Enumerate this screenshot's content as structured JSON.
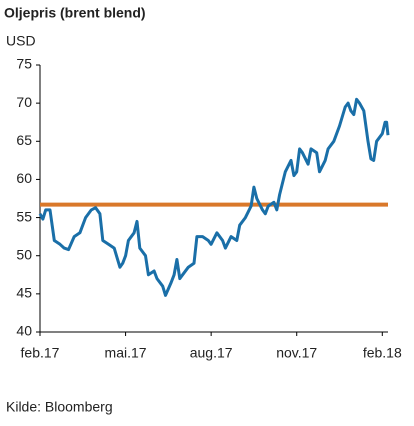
{
  "chart_data": {
    "type": "line",
    "title": "Oljepris (brent blend)",
    "y_label": "USD",
    "source": "Kilde: Bloomberg",
    "x": [
      0,
      0.1,
      0.2,
      0.35,
      0.5,
      0.7,
      0.85,
      1.0,
      1.2,
      1.4,
      1.6,
      1.8,
      1.95,
      2.1,
      2.2,
      2.4,
      2.6,
      2.8,
      2.9,
      3.0,
      3.1,
      3.3,
      3.4,
      3.5,
      3.7,
      3.8,
      4.0,
      4.1,
      4.3,
      4.4,
      4.6,
      4.7,
      4.8,
      4.9,
      5.0,
      5.2,
      5.4,
      5.5,
      5.7,
      5.9,
      6.0,
      6.2,
      6.4,
      6.5,
      6.7,
      6.9,
      7.0,
      7.2,
      7.4,
      7.5,
      7.6,
      7.8,
      7.9,
      8.0,
      8.2,
      8.3,
      8.4,
      8.6,
      8.8,
      8.9,
      9.0,
      9.1,
      9.2,
      9.4,
      9.5,
      9.7,
      9.8,
      10.0,
      10.1,
      10.3,
      10.5,
      10.7,
      10.8,
      10.9,
      11.0,
      11.1,
      11.2,
      11.35,
      11.5,
      11.6,
      11.7,
      11.8,
      12.0,
      12.1,
      12.15,
      12.2
    ],
    "series": [
      {
        "name": "Brent",
        "color": "#1a6fa8",
        "values": [
          55.5,
          54.8,
          56,
          56,
          52,
          51.5,
          51,
          50.8,
          52.5,
          53,
          55,
          56,
          56.3,
          55.5,
          52,
          51.5,
          51,
          48.5,
          49,
          50,
          52,
          53,
          54.5,
          51,
          50,
          47.5,
          48,
          47,
          46,
          44.8,
          46.5,
          47.5,
          49.5,
          47,
          47.5,
          48.5,
          49,
          52.5,
          52.5,
          52,
          51.5,
          53,
          52,
          51,
          52.5,
          52,
          54,
          55,
          56.5,
          59,
          57.5,
          56,
          55.5,
          56.5,
          57,
          56,
          58,
          61,
          62.5,
          60.5,
          61,
          64,
          63.5,
          62,
          64,
          63.5,
          61,
          62.5,
          64,
          65,
          67,
          69.5,
          70,
          69,
          68.5,
          70.5,
          70,
          69,
          65,
          62.7,
          62.5,
          65,
          66,
          67.5,
          67.5,
          65.8
        ]
      }
    ],
    "reference_line": {
      "value": 56.7,
      "color": "#d9782a"
    },
    "xlim": [
      0,
      12.2
    ],
    "xticks": [
      {
        "value": 0,
        "label": "feb.17"
      },
      {
        "value": 3,
        "label": "mai.17"
      },
      {
        "value": 6,
        "label": "aug.17"
      },
      {
        "value": 9,
        "label": "nov.17"
      },
      {
        "value": 12,
        "label": "feb.18"
      }
    ],
    "ylim": [
      40,
      75
    ],
    "yticks": [
      40,
      45,
      50,
      55,
      60,
      65,
      70,
      75
    ]
  }
}
